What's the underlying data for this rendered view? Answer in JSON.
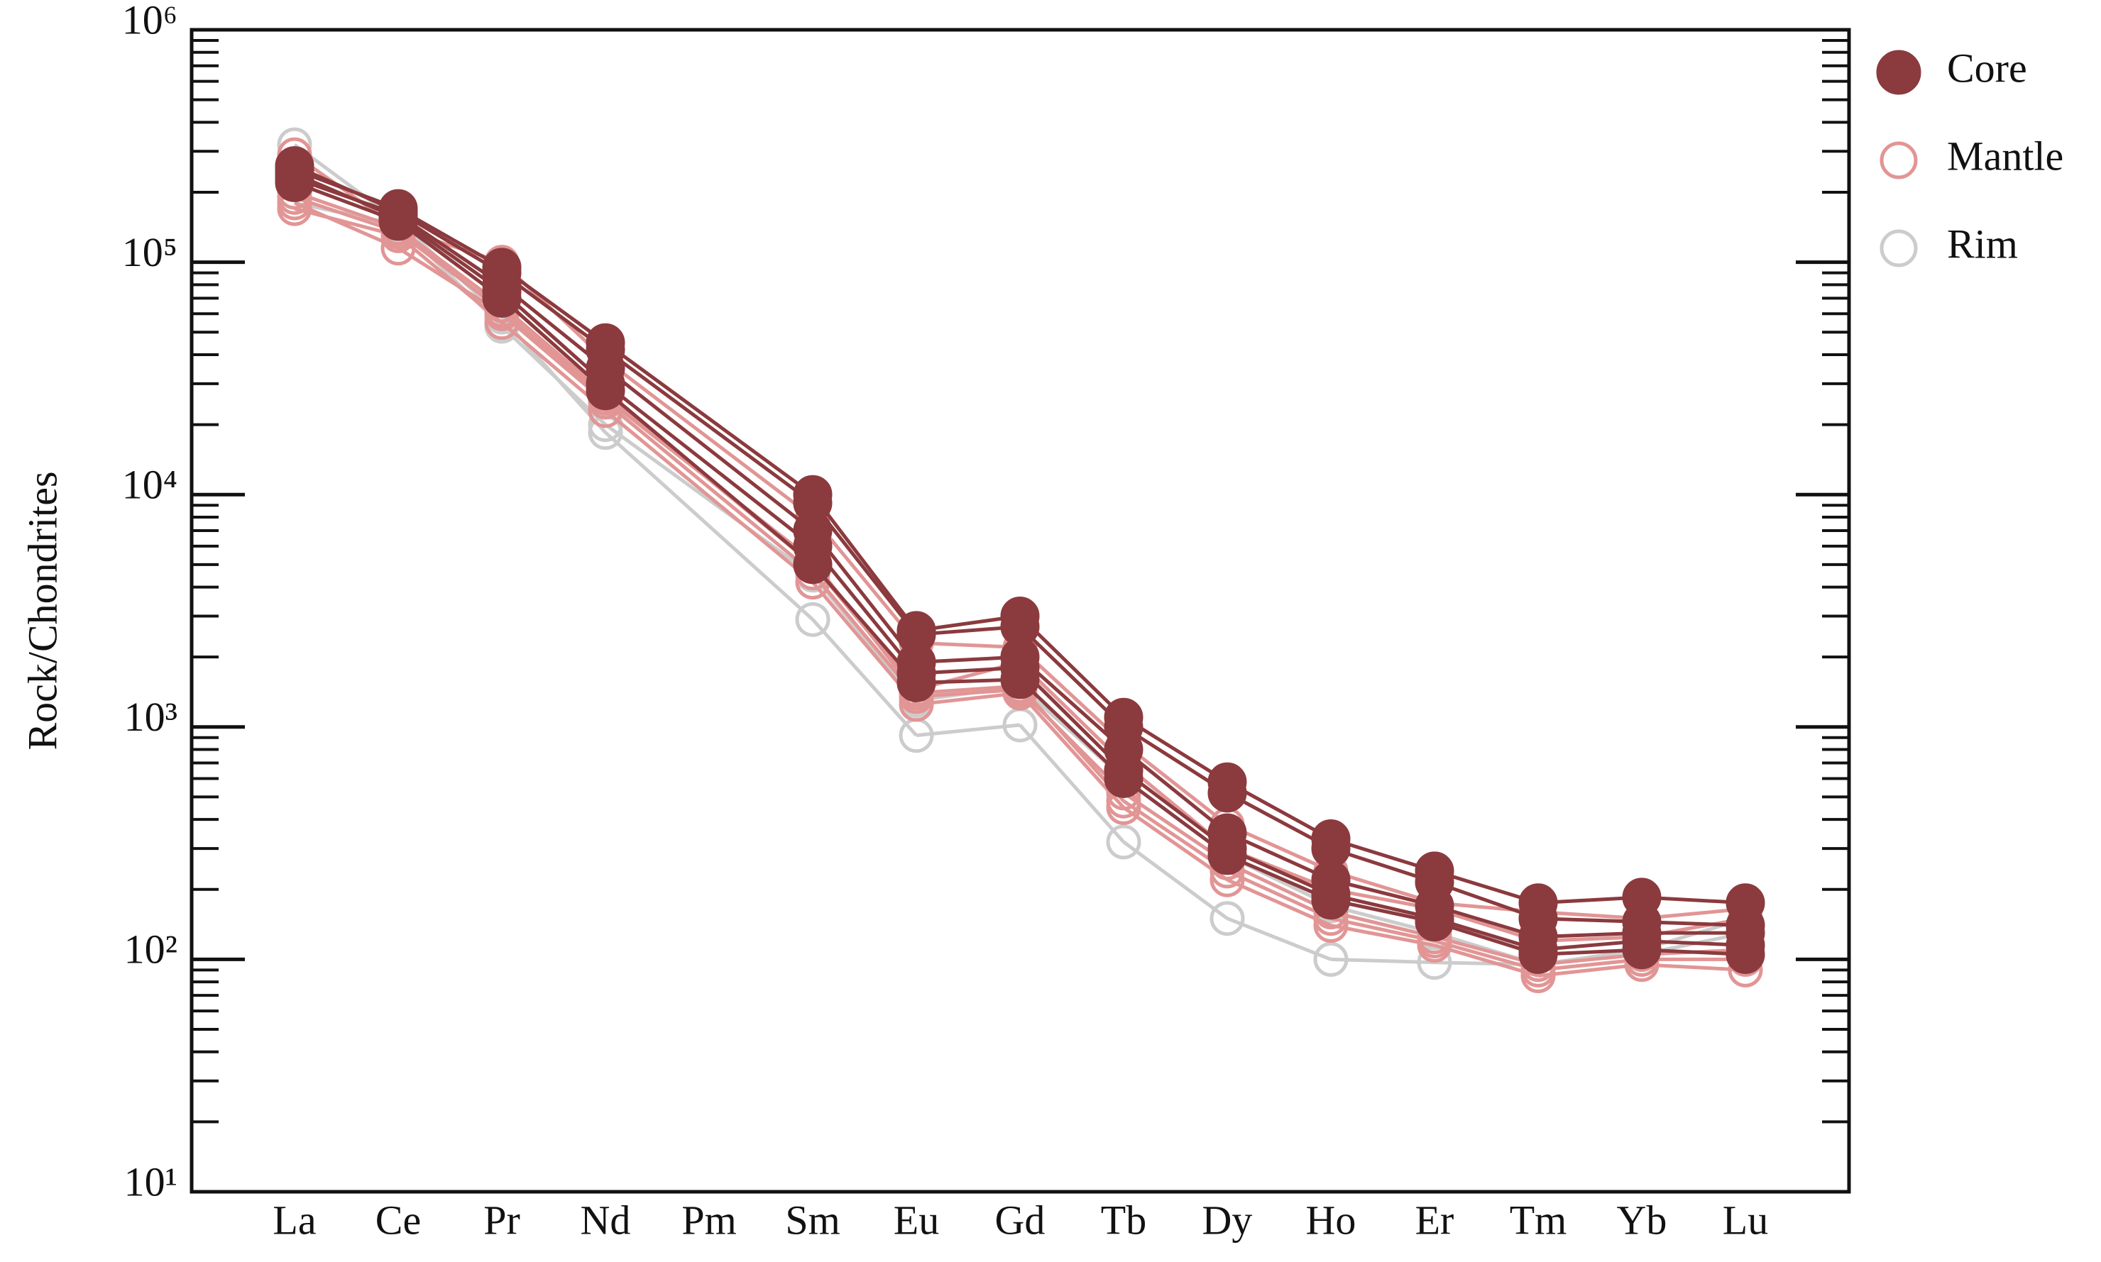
{
  "chart_data": {
    "type": "line",
    "ylabel": "Rock/Chondrites",
    "log_y": true,
    "minor_ticks": true,
    "legend": "right",
    "ylim": [
      10,
      1000000
    ],
    "yticks": [
      {
        "value": 10,
        "label": "10¹"
      },
      {
        "value": 100,
        "label": "10²"
      },
      {
        "value": 1000,
        "label": "10³"
      },
      {
        "value": 10000,
        "label": "10⁴"
      },
      {
        "value": 100000,
        "label": "10⁵"
      },
      {
        "value": 1000000,
        "label": "10⁶"
      }
    ],
    "categories": [
      "La",
      "Ce",
      "Pr",
      "Nd",
      "Pm",
      "Sm",
      "Eu",
      "Gd",
      "Tb",
      "Dy",
      "Ho",
      "Er",
      "Tm",
      "Yb",
      "Lu"
    ],
    "series": [
      {
        "name": "Core",
        "color": "#8b3a3e",
        "marker": "filled",
        "values": [
          [
            250000,
            170000,
            95000,
            45000,
            null,
            10000,
            2600,
            3000,
            1100,
            580,
            330,
            240,
            175,
            185,
            175
          ],
          [
            260000,
            165000,
            90000,
            42000,
            null,
            9200,
            2500,
            2700,
            1000,
            520,
            300,
            215,
            150,
            145,
            140
          ],
          [
            230000,
            160000,
            80000,
            35000,
            null,
            7000,
            1900,
            2000,
            800,
            350,
            220,
            170,
            125,
            130,
            130
          ],
          [
            240000,
            155000,
            75000,
            30000,
            null,
            6000,
            1700,
            1800,
            650,
            300,
            190,
            150,
            110,
            120,
            115
          ],
          [
            220000,
            150000,
            70000,
            28000,
            null,
            5000,
            1550,
            1600,
            600,
            280,
            180,
            145,
            105,
            110,
            105
          ]
        ]
      },
      {
        "name": "Mantle",
        "color": "#e29595",
        "marker": "open",
        "values": [
          [
            290000,
            140000,
            100000,
            38000,
            null,
            8000,
            2300,
            2200,
            850,
            380,
            240,
            175,
            160,
            150,
            165
          ],
          [
            200000,
            140000,
            65000,
            27000,
            null,
            5000,
            1450,
            1900,
            700,
            300,
            200,
            165,
            120,
            125,
            150
          ],
          [
            180000,
            115000,
            60000,
            25000,
            null,
            4600,
            1350,
            1450,
            520,
            260,
            160,
            125,
            95,
            105,
            110
          ],
          [
            170000,
            130000,
            55000,
            23000,
            null,
            4200,
            1250,
            1400,
            450,
            220,
            140,
            115,
            85,
            95,
            90
          ],
          [
            190000,
            135000,
            62000,
            26000,
            null,
            5200,
            1400,
            1500,
            480,
            240,
            150,
            120,
            90,
            100,
            100
          ]
        ]
      },
      {
        "name": "Rim",
        "color": "#cccccc",
        "marker": "open",
        "values": [
          [
            320000,
            150000,
            58000,
            18500,
            null,
            2900,
            920,
            1020,
            320,
            150,
            100,
            97,
            95,
            110,
            150
          ],
          [
            180000,
            145000,
            53000,
            20000,
            null,
            4500,
            1300,
            1500,
            600,
            280,
            170,
            130,
            95,
            105,
            130
          ]
        ]
      }
    ]
  }
}
